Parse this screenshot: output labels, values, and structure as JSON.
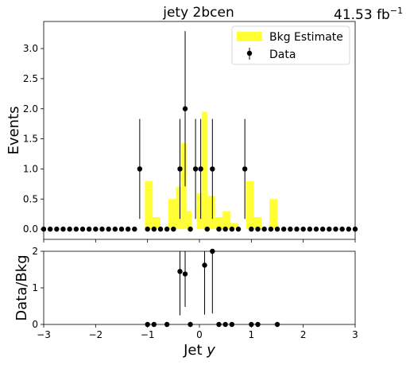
{
  "chart_data": {
    "type": "bar",
    "title": "jety  2bcen",
    "lumi_label": "41.53 fb",
    "lumi_exponent": "−1",
    "colors": {
      "bkg": "#ffff33",
      "data": "#000000"
    },
    "main": {
      "ylabel": "Events",
      "xlim": [
        -3,
        3
      ],
      "ylim": [
        -0.17,
        3.45
      ],
      "yticks": [
        "0.0",
        "0.5",
        "1.0",
        "1.5",
        "2.0",
        "2.5",
        "3.0"
      ],
      "legend_position": "top-right",
      "legend": {
        "bkg": "Bkg Estimate",
        "data": "Data"
      }
    },
    "ratio": {
      "ylabel": "Data/Bkg",
      "xlabel_main": "Jet ",
      "xlabel_var": "y",
      "xlim": [
        -3,
        3
      ],
      "ylim": [
        0,
        2
      ],
      "yticks": [
        "0",
        "1",
        "2"
      ],
      "xticks": [
        "−3",
        "−2",
        "−1",
        "0",
        "1",
        "2",
        "3"
      ]
    },
    "bkg_edges": [
      -1.05,
      -0.9,
      -0.75,
      -0.6,
      -0.45,
      -0.35,
      -0.25,
      -0.15,
      -0.05,
      0.05,
      0.15,
      0.3,
      0.45,
      0.6,
      0.75,
      0.9,
      1.05,
      1.2,
      1.35,
      1.5,
      1.65
    ],
    "bkg_values": [
      0.8,
      0.2,
      0.0,
      0.5,
      0.7,
      1.43,
      0.3,
      0.0,
      0.6,
      1.95,
      0.55,
      0.2,
      0.3,
      0.1,
      0.0,
      0.8,
      0.2,
      0.0,
      0.5,
      0.0
    ],
    "data_x": [
      -3.0,
      -2.875,
      -2.75,
      -2.625,
      -2.5,
      -2.375,
      -2.25,
      -2.125,
      -2.0,
      -1.875,
      -1.75,
      -1.625,
      -1.5,
      -1.375,
      -1.25,
      -1.15,
      -1.0,
      -0.875,
      -0.75,
      -0.625,
      -0.5,
      -0.375,
      -0.275,
      -0.175,
      -0.075,
      0.025,
      0.15,
      0.25,
      0.375,
      0.5,
      0.625,
      0.75,
      0.875,
      1.0,
      1.125,
      1.25,
      1.375,
      1.5,
      1.625,
      1.75,
      1.875,
      2.0,
      2.125,
      2.25,
      2.375,
      2.5,
      2.625,
      2.75,
      2.875,
      3.0
    ],
    "data_y": [
      0,
      0,
      0,
      0,
      0,
      0,
      0,
      0,
      0,
      0,
      0,
      0,
      0,
      0,
      0,
      1,
      0,
      0,
      0,
      0,
      0,
      1,
      2,
      0,
      1,
      1,
      0,
      1,
      0,
      0,
      0,
      0,
      1,
      0,
      0,
      0,
      0,
      0,
      0,
      0,
      0,
      0,
      0,
      0,
      0,
      0,
      0,
      0,
      0,
      0
    ],
    "data_err_low": [
      0,
      0,
      0,
      0,
      0,
      0,
      0,
      0,
      0,
      0,
      0,
      0,
      0,
      0,
      0,
      0.83,
      0,
      0,
      0,
      0,
      0,
      0.83,
      1.29,
      0,
      0.83,
      0.83,
      0,
      0.83,
      0,
      0,
      0,
      0,
      0.83,
      0,
      0,
      0,
      0,
      0,
      0,
      0,
      0,
      0,
      0,
      0,
      0,
      0,
      0,
      0,
      0,
      0
    ],
    "data_err_high": [
      0,
      0,
      0,
      0,
      0,
      0,
      0,
      0,
      0,
      0,
      0,
      0,
      0,
      0,
      0,
      0.83,
      0,
      0,
      0,
      0,
      0,
      0.83,
      1.29,
      0,
      0.83,
      0.83,
      0,
      0.83,
      0,
      0,
      0,
      0,
      0.83,
      0,
      0,
      0,
      0,
      0,
      0,
      0,
      0,
      0,
      0,
      0,
      0,
      0,
      0,
      0,
      0,
      0
    ],
    "ratio_x": [
      -1.0,
      -0.875,
      -0.625,
      -0.375,
      -0.275,
      -0.175,
      0.1,
      0.25,
      0.375,
      0.5,
      0.625,
      1.0,
      1.125,
      1.5
    ],
    "ratio_y": [
      0,
      0,
      0,
      1.45,
      1.38,
      0,
      1.62,
      2.0,
      0,
      0,
      0,
      0,
      0,
      0
    ],
    "ratio_err_low": [
      0,
      0,
      0,
      1.2,
      0.9,
      0,
      1.35,
      1.7,
      0,
      0,
      0,
      0,
      0,
      0
    ],
    "ratio_err_high": [
      0,
      0,
      0,
      1.2,
      1.8,
      0,
      1.35,
      1.7,
      0,
      0,
      0,
      0,
      0,
      0
    ]
  }
}
